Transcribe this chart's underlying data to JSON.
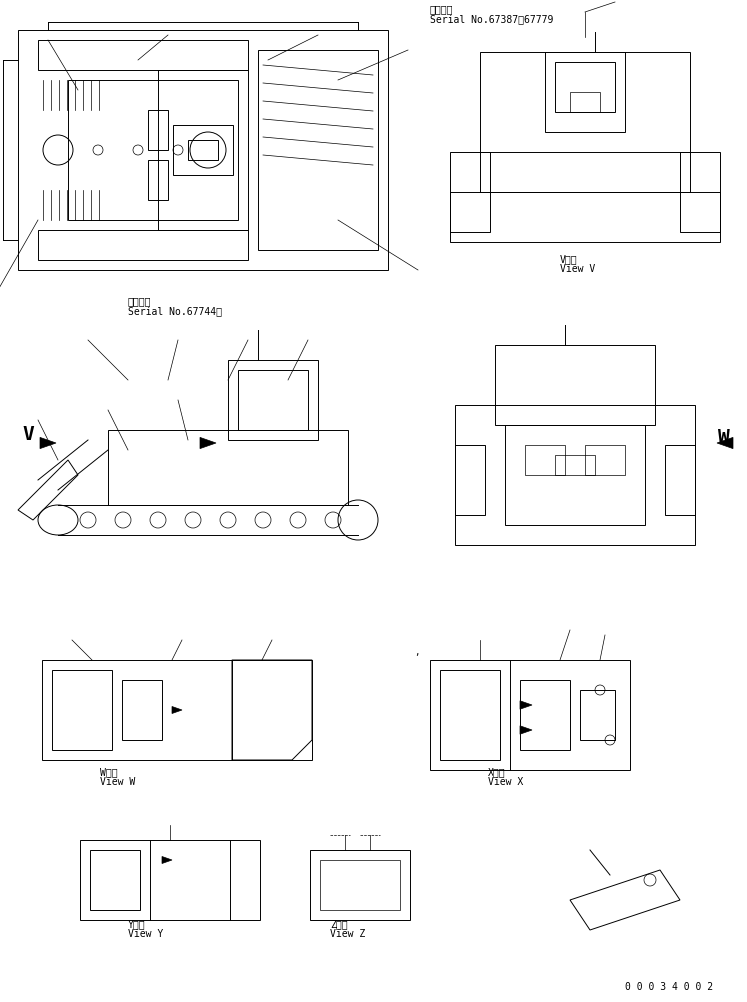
{
  "bg_color": "#ffffff",
  "text_color": "#000000",
  "title_upper_jp": "適用号機",
  "title_upper_en": "Serial No.67387～67779",
  "title_lower_jp": "適用号機",
  "title_lower_en": "Serial No.67744～",
  "view_v_jp": "V　視",
  "view_v_en": "View V",
  "view_w_jp": "W　視",
  "view_w_en": "View W",
  "view_x_jp": "X　視",
  "view_x_en": "View X",
  "view_y_jp": "Y　視",
  "view_y_en": "View Y",
  "view_z_jp": "Z　視",
  "view_z_en": "View Z",
  "part_number": "0 0 0 3 4 0 0 2",
  "font_size_label": 7,
  "font_size_view": 7,
  "font_size_part": 7
}
